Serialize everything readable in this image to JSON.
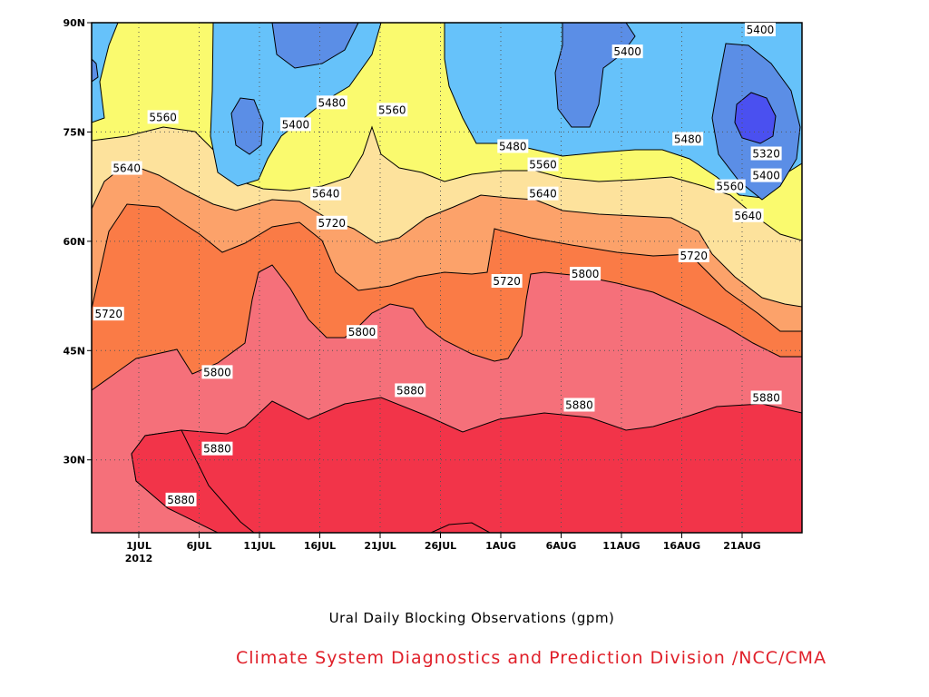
{
  "chart_data": {
    "type": "contour",
    "title": "Ural Daily Blocking Observations (gpm)",
    "credit": "Climate System Diagnostics and Prediction Division /NCC/CMA",
    "x_ticks": [
      {
        "label": "1JUL",
        "sub": "2012"
      },
      {
        "label": "6JUL"
      },
      {
        "label": "11JUL"
      },
      {
        "label": "16JUL"
      },
      {
        "label": "21JUL"
      },
      {
        "label": "26JUL"
      },
      {
        "label": "1AUG"
      },
      {
        "label": "6AUG"
      },
      {
        "label": "11AUG"
      },
      {
        "label": "16AUG"
      },
      {
        "label": "21AUG"
      }
    ],
    "y_ticks": [
      {
        "label": "30N",
        "lat": 30
      },
      {
        "label": "45N",
        "lat": 45
      },
      {
        "label": "60N",
        "lat": 60
      },
      {
        "label": "75N",
        "lat": 75
      },
      {
        "label": "90N",
        "lat": 90
      }
    ],
    "y_range": [
      20,
      90
    ],
    "x_range_days": [
      27,
      87
    ],
    "grid": true,
    "contour_levels": [
      5320,
      5400,
      5480,
      5560,
      5640,
      5720,
      5800,
      5880
    ],
    "fill_colors": {
      "5320": "#4a50f0",
      "5400": "#5b8ee6",
      "5480": "#66c2fa",
      "5560": "#fafa6e",
      "5640": "#fde29c",
      "5720": "#fca26a",
      "5800": "#fa7b46",
      "5880": "#f5707a",
      "5960": "#f23449"
    },
    "contour_labels": [
      {
        "text": "5400",
        "day": 43,
        "lat": 76
      },
      {
        "text": "5480",
        "day": 46,
        "lat": 79
      },
      {
        "text": "5560",
        "day": 32,
        "lat": 77
      },
      {
        "text": "5560",
        "day": 51,
        "lat": 78
      },
      {
        "text": "5400",
        "day": 70.5,
        "lat": 86
      },
      {
        "text": "5400",
        "day": 81.5,
        "lat": 90
      },
      {
        "text": "5480",
        "day": 61,
        "lat": 73
      },
      {
        "text": "5480",
        "day": 75.5,
        "lat": 74
      },
      {
        "text": "5320",
        "day": 82,
        "lat": 72
      },
      {
        "text": "5400",
        "day": 82,
        "lat": 69
      },
      {
        "text": "5640",
        "day": 29,
        "lat": 70
      },
      {
        "text": "5560",
        "day": 63.5,
        "lat": 70.5
      },
      {
        "text": "5560",
        "day": 79,
        "lat": 67.5
      },
      {
        "text": "5640",
        "day": 45.5,
        "lat": 66.5
      },
      {
        "text": "5640",
        "day": 63.5,
        "lat": 66.5
      },
      {
        "text": "5640",
        "day": 80.5,
        "lat": 63.5
      },
      {
        "text": "5720",
        "day": 46,
        "lat": 62.5
      },
      {
        "text": "5720",
        "day": 76,
        "lat": 58
      },
      {
        "text": "5720",
        "day": 27.5,
        "lat": 50
      },
      {
        "text": "5720",
        "day": 60.5,
        "lat": 54.5
      },
      {
        "text": "5800",
        "day": 67,
        "lat": 55.5
      },
      {
        "text": "5800",
        "day": 48.5,
        "lat": 47.5
      },
      {
        "text": "5800",
        "day": 36.5,
        "lat": 42
      },
      {
        "text": "5880",
        "day": 52.5,
        "lat": 39.5
      },
      {
        "text": "5880",
        "day": 66.5,
        "lat": 37.5
      },
      {
        "text": "5880",
        "day": 82,
        "lat": 38.5
      },
      {
        "text": "5880",
        "day": 36.5,
        "lat": 31.5
      },
      {
        "text": "5880",
        "day": 33.5,
        "lat": 24.5
      }
    ]
  }
}
